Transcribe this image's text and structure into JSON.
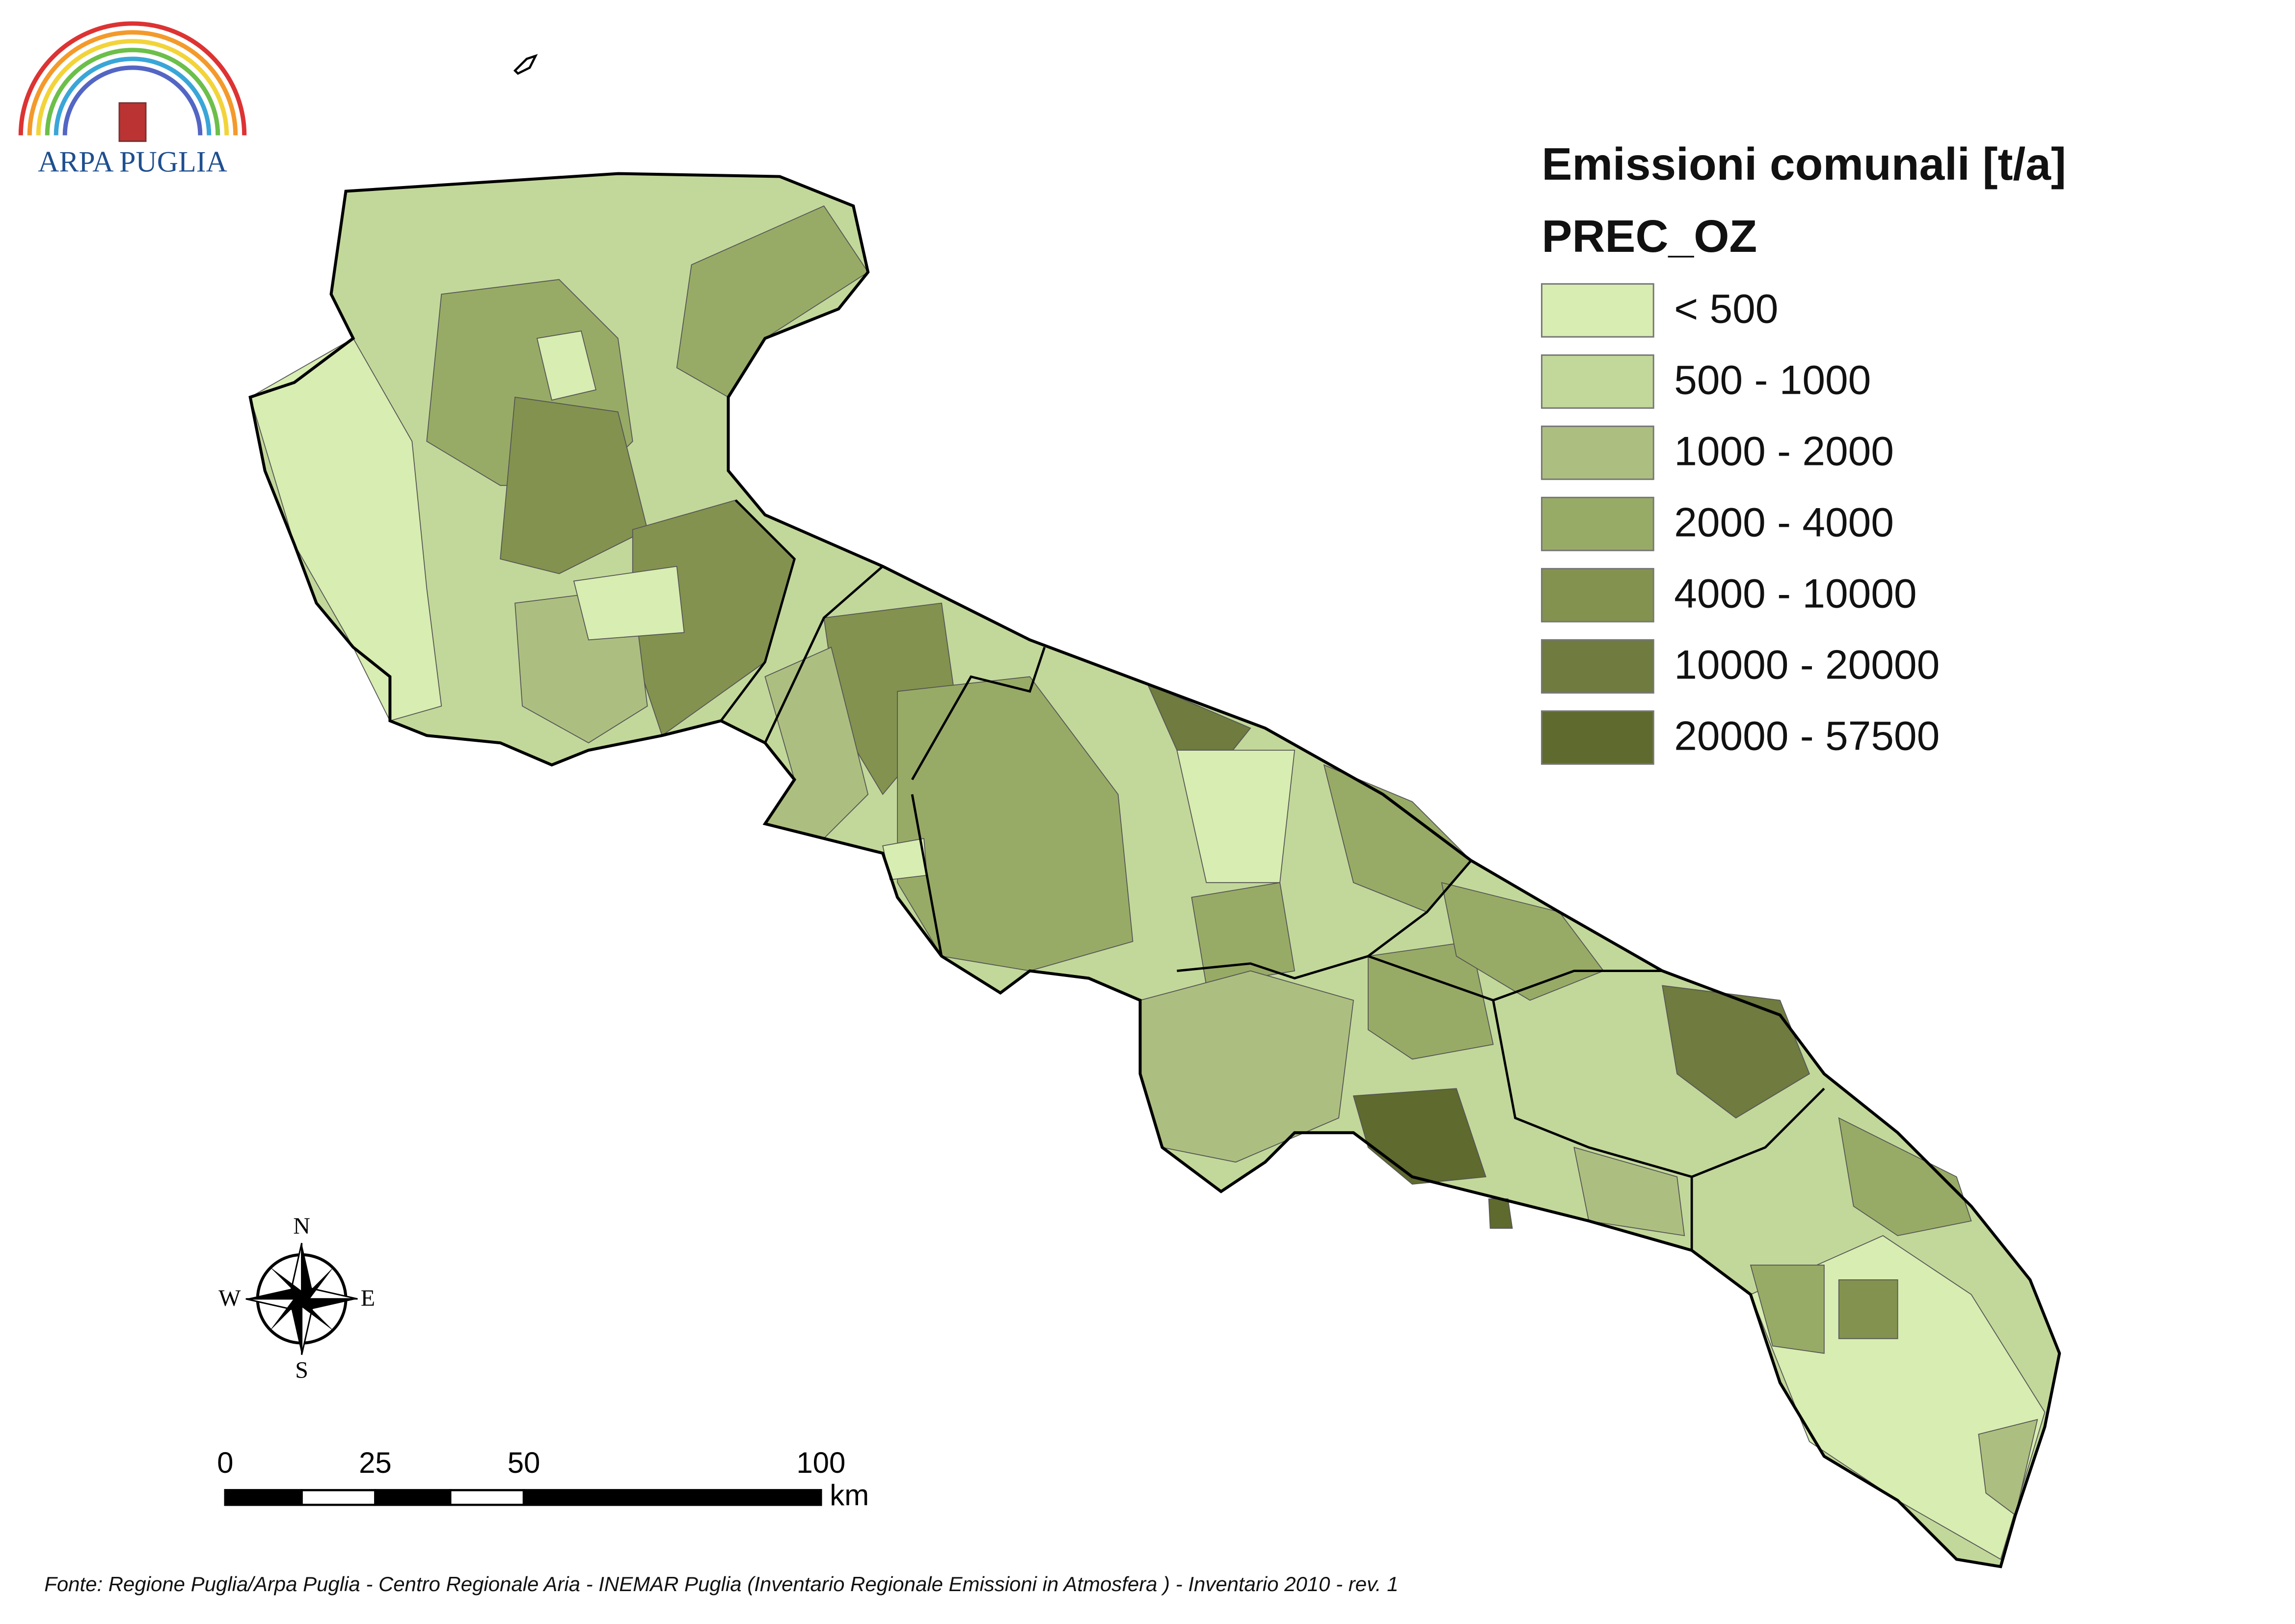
{
  "logo": {
    "text": "ARPA PUGLIA"
  },
  "legend": {
    "title": "Emissioni comunali [t/a]",
    "subtitle": "PREC_OZ",
    "classes": [
      {
        "label": "< 500",
        "color": "#d8edb1"
      },
      {
        "label": "500 - 1000",
        "color": "#c2d89a"
      },
      {
        "label": "1000 - 2000",
        "color": "#adbf80"
      },
      {
        "label": "2000 - 4000",
        "color": "#98ab66"
      },
      {
        "label": "4000 - 10000",
        "color": "#83924f"
      },
      {
        "label": "10000 - 20000",
        "color": "#6f7b3f"
      },
      {
        "label": "20000 - 57500",
        "color": "#5f6a2e"
      }
    ]
  },
  "compass": {
    "n": "N",
    "w": "W",
    "e": "E",
    "s": "S"
  },
  "scale_bar": {
    "labels": [
      "0",
      "25",
      "50",
      "100"
    ],
    "unit": "km"
  },
  "source": "Fonte: Regione Puglia/Arpa Puglia - Centro Regionale Aria - INEMAR Puglia (Inventario Regionale Emissioni in Atmosfera ) - Inventario 2010 - rev. 1"
}
